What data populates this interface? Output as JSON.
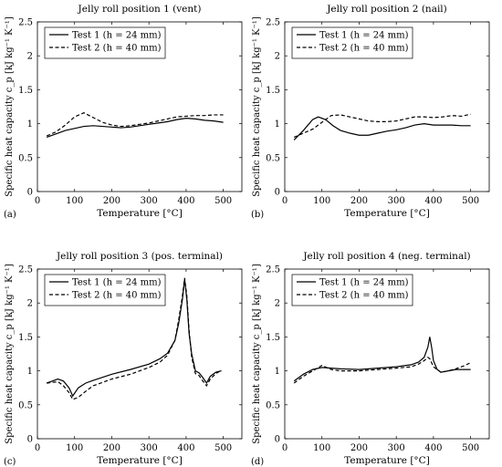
{
  "chart_data": [
    {
      "type": "line",
      "panel_label": "(a)",
      "title": "Jelly roll position 1 (vent)",
      "xlabel": "Temperature [°C]",
      "ylabel": "Specific heat capacity c_p [kJ kg⁻¹ K⁻¹]",
      "xlim": [
        0,
        550
      ],
      "ylim": [
        0,
        2.5
      ],
      "xticks": [
        0,
        100,
        200,
        300,
        400,
        500
      ],
      "yticks": [
        0,
        0.5,
        1,
        1.5,
        2,
        2.5
      ],
      "legend": "top-left",
      "series": [
        {
          "name": "Test 1 (h = 24 mm)",
          "style": "solid",
          "x": [
            25,
            50,
            75,
            100,
            125,
            150,
            175,
            200,
            225,
            250,
            275,
            300,
            325,
            350,
            375,
            400,
            425,
            450,
            475,
            500
          ],
          "y": [
            0.8,
            0.85,
            0.9,
            0.93,
            0.96,
            0.97,
            0.96,
            0.95,
            0.94,
            0.95,
            0.97,
            0.99,
            1.01,
            1.03,
            1.06,
            1.08,
            1.07,
            1.05,
            1.04,
            1.02
          ]
        },
        {
          "name": "Test 2 (h = 40 mm)",
          "style": "dashed",
          "x": [
            25,
            50,
            75,
            100,
            125,
            150,
            175,
            200,
            225,
            250,
            275,
            300,
            325,
            350,
            375,
            400,
            425,
            450,
            475,
            500
          ],
          "y": [
            0.82,
            0.88,
            0.98,
            1.1,
            1.16,
            1.09,
            1.02,
            0.98,
            0.96,
            0.97,
            0.99,
            1.01,
            1.04,
            1.07,
            1.1,
            1.11,
            1.12,
            1.12,
            1.13,
            1.13
          ]
        }
      ]
    },
    {
      "type": "line",
      "panel_label": "(b)",
      "title": "Jelly roll position 2 (nail)",
      "xlabel": "Temperature [°C]",
      "ylabel": "Specific heat capacity c_p [kJ kg⁻¹ K⁻¹]",
      "xlim": [
        0,
        550
      ],
      "ylim": [
        0,
        2.5
      ],
      "xticks": [
        0,
        100,
        200,
        300,
        400,
        500
      ],
      "yticks": [
        0,
        0.5,
        1,
        1.5,
        2,
        2.5
      ],
      "legend": "top-left",
      "series": [
        {
          "name": "Test 1 (h = 24 mm)",
          "style": "solid",
          "x": [
            25,
            50,
            75,
            90,
            110,
            130,
            150,
            175,
            200,
            225,
            250,
            275,
            300,
            325,
            350,
            375,
            400,
            425,
            450,
            475,
            500
          ],
          "y": [
            0.76,
            0.9,
            1.06,
            1.1,
            1.06,
            0.97,
            0.9,
            0.86,
            0.83,
            0.83,
            0.86,
            0.89,
            0.91,
            0.94,
            0.98,
            1.0,
            0.98,
            0.98,
            0.98,
            0.97,
            0.97
          ]
        },
        {
          "name": "Test 2 (h = 40 mm)",
          "style": "dashed",
          "x": [
            25,
            50,
            75,
            100,
            125,
            150,
            175,
            200,
            225,
            250,
            275,
            300,
            325,
            350,
            375,
            400,
            425,
            450,
            475,
            500
          ],
          "y": [
            0.8,
            0.86,
            0.92,
            1.02,
            1.12,
            1.13,
            1.1,
            1.07,
            1.04,
            1.03,
            1.03,
            1.04,
            1.07,
            1.1,
            1.1,
            1.09,
            1.1,
            1.12,
            1.11,
            1.14
          ]
        }
      ]
    },
    {
      "type": "line",
      "panel_label": "(c)",
      "title": "Jelly roll position 3 (pos. terminal)",
      "xlabel": "Temperature [°C]",
      "ylabel": "Specific heat capacity c_p [kJ kg⁻¹ K⁻¹]",
      "xlim": [
        0,
        550
      ],
      "ylim": [
        0,
        2.5
      ],
      "xticks": [
        0,
        100,
        200,
        300,
        400,
        500
      ],
      "yticks": [
        0,
        0.5,
        1,
        1.5,
        2,
        2.5
      ],
      "legend": "top-left",
      "series": [
        {
          "name": "Test 1 (h = 24 mm)",
          "style": "solid",
          "x": [
            25,
            40,
            55,
            70,
            85,
            95,
            110,
            130,
            150,
            200,
            250,
            300,
            330,
            350,
            370,
            380,
            390,
            396,
            402,
            408,
            415,
            425,
            435,
            445,
            455,
            465,
            480,
            495
          ],
          "y": [
            0.82,
            0.85,
            0.88,
            0.85,
            0.75,
            0.63,
            0.75,
            0.82,
            0.86,
            0.95,
            1.02,
            1.1,
            1.18,
            1.26,
            1.45,
            1.7,
            2.05,
            2.35,
            2.05,
            1.55,
            1.25,
            1.0,
            0.97,
            0.9,
            0.82,
            0.92,
            0.98,
            1.0
          ]
        },
        {
          "name": "Test 2 (h = 40 mm)",
          "style": "dashed",
          "x": [
            25,
            40,
            55,
            70,
            85,
            95,
            110,
            130,
            150,
            200,
            250,
            300,
            330,
            350,
            370,
            380,
            390,
            396,
            402,
            408,
            415,
            425,
            435,
            445,
            455,
            465,
            480,
            495
          ],
          "y": [
            0.82,
            0.83,
            0.84,
            0.78,
            0.68,
            0.58,
            0.61,
            0.7,
            0.78,
            0.88,
            0.95,
            1.05,
            1.13,
            1.23,
            1.45,
            1.75,
            2.1,
            2.37,
            2.1,
            1.6,
            1.2,
            0.96,
            0.93,
            0.85,
            0.78,
            0.88,
            0.96,
            1.01
          ]
        }
      ]
    },
    {
      "type": "line",
      "panel_label": "(d)",
      "title": "Jelly roll position 4 (neg. terminal)",
      "xlabel": "Temperature [°C]",
      "ylabel": "Specific heat capacity c_p [kJ kg⁻¹ K⁻¹]",
      "xlim": [
        0,
        550
      ],
      "ylim": [
        0,
        2.5
      ],
      "xticks": [
        0,
        100,
        200,
        300,
        400,
        500
      ],
      "yticks": [
        0,
        0.5,
        1,
        1.5,
        2,
        2.5
      ],
      "legend": "top-left",
      "series": [
        {
          "name": "Test 1 (h = 24 mm)",
          "style": "solid",
          "x": [
            25,
            50,
            75,
            100,
            150,
            200,
            250,
            300,
            340,
            360,
            375,
            385,
            390,
            395,
            400,
            410,
            420,
            440,
            460,
            480,
            500
          ],
          "y": [
            0.85,
            0.95,
            1.02,
            1.05,
            1.03,
            1.02,
            1.04,
            1.06,
            1.09,
            1.13,
            1.2,
            1.35,
            1.5,
            1.35,
            1.15,
            1.02,
            0.98,
            1.0,
            1.02,
            1.02,
            1.02
          ]
        },
        {
          "name": "Test 2 (h = 40 mm)",
          "style": "dashed",
          "x": [
            25,
            50,
            75,
            100,
            125,
            150,
            200,
            250,
            300,
            340,
            360,
            375,
            385,
            390,
            400,
            420,
            440,
            460,
            480,
            500
          ],
          "y": [
            0.82,
            0.92,
            1.0,
            1.08,
            1.02,
            1.0,
            1.0,
            1.02,
            1.04,
            1.06,
            1.1,
            1.15,
            1.2,
            1.18,
            1.06,
            0.98,
            1.0,
            1.03,
            1.07,
            1.12
          ]
        }
      ]
    }
  ]
}
